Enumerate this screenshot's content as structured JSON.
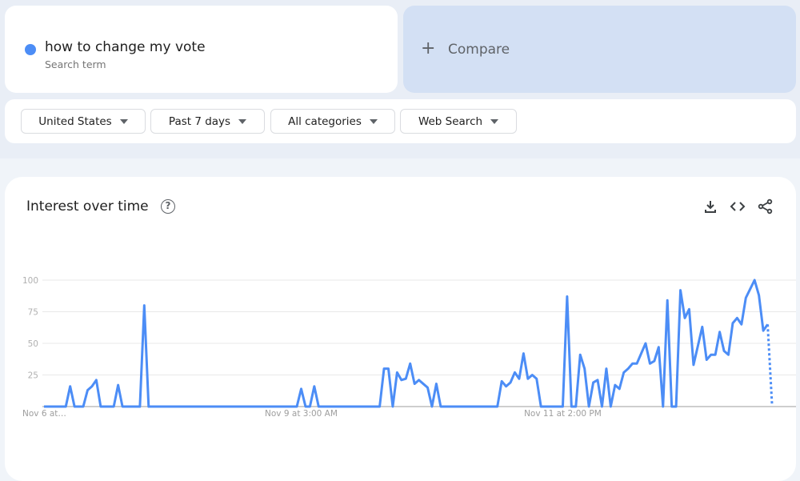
{
  "search_term": {
    "name": "how to change my vote",
    "type_label": "Search term",
    "color": "#4c8df6"
  },
  "compare": {
    "icon": "plus-icon",
    "label": "Compare"
  },
  "filters": [
    {
      "label": "United States"
    },
    {
      "label": "Past 7 days"
    },
    {
      "label": "All categories"
    },
    {
      "label": "Web Search"
    }
  ],
  "chart_card": {
    "title": "Interest over time",
    "icons": [
      "help-icon",
      "download-icon",
      "embed-code-icon",
      "share-icon"
    ]
  },
  "chart_data": {
    "type": "line",
    "title": "Interest over time",
    "ylim": [
      0,
      100
    ],
    "y_ticks": [
      "100",
      "75",
      "50",
      "25"
    ],
    "x_tick_labels": [
      "Nov 6 at…",
      "Nov 9 at 3:00 AM",
      "Nov 11 at 2:00 PM"
    ],
    "grid": true,
    "line_color": "#4c8df6",
    "last_point_partial": true,
    "series": [
      {
        "values": [
          0,
          0,
          0,
          0,
          0,
          0,
          16,
          0,
          0,
          0,
          13,
          16,
          21,
          0,
          0,
          0,
          0,
          17,
          0,
          0,
          0,
          0,
          0,
          80,
          0,
          0,
          0,
          0,
          0,
          0,
          0,
          0,
          0,
          0,
          0,
          0,
          0,
          0,
          0,
          0,
          0,
          0,
          0,
          0,
          0,
          0,
          0,
          0,
          0,
          0,
          0,
          0,
          0,
          0,
          0,
          0,
          0,
          0,
          0,
          14,
          0,
          0,
          16,
          0,
          0,
          0,
          0,
          0,
          0,
          0,
          0,
          0,
          0,
          0,
          0,
          0,
          0,
          0,
          30,
          30,
          0,
          27,
          21,
          22,
          34,
          18,
          21,
          18,
          15,
          0,
          18,
          0,
          0,
          0,
          0,
          0,
          0,
          0,
          0,
          0,
          0,
          0,
          0,
          0,
          0,
          20,
          16,
          19,
          27,
          22,
          42,
          22,
          25,
          22,
          0,
          0,
          0,
          0,
          0,
          0,
          87,
          0,
          0,
          41,
          30,
          0,
          19,
          21,
          0,
          30,
          0,
          17,
          14,
          27,
          30,
          34,
          34,
          42,
          50,
          34,
          36,
          47,
          0,
          84,
          0,
          0,
          92,
          70,
          77,
          33,
          48,
          63,
          37,
          41,
          41,
          59,
          44,
          41,
          66,
          70,
          65,
          86,
          93,
          100,
          88,
          60,
          65,
          2
        ]
      }
    ]
  }
}
